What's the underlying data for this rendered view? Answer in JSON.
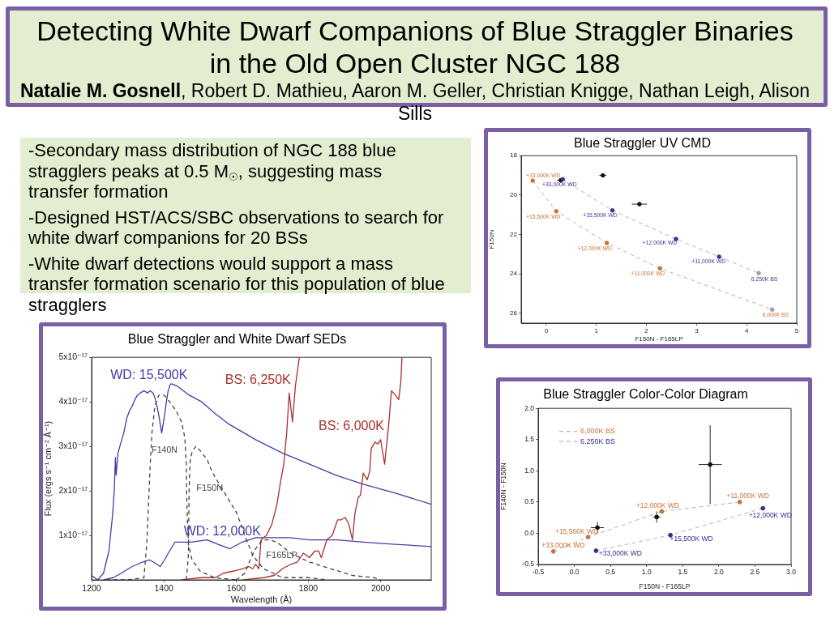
{
  "chart_data": [
    {
      "type": "other",
      "title": "Detecting White Dwarf Companions of Blue Straggler Binaries in the Old Open Cluster NGC 188",
      "subtitle": "Natalie M. Gosnell, Robert D. Mathieu, Aaron M. Geller, Christian Knigge, Nathan Leigh, Alison Sills",
      "annotations": [
        "-Secondary mass distribution of NGC 188 blue stragglers peaks at 0.5 M$_{☉}$, suggesting mass transfer formation",
        "-Designed HST/ACS/SBC observations to search for white dwarf companions for 20 BSs",
        "-White dwarf detections would support a mass transfer formation scenario for this population of blue stragglers"
      ]
    },
    {
      "type": "scatter",
      "title": "Blue Straggler UV CMD",
      "xlabel": "F150N - F165LP",
      "ylabel": "F150N",
      "xlim": [
        -0.5,
        5
      ],
      "ylim": [
        26.5,
        18
      ],
      "xticks": [
        0,
        1,
        2,
        3,
        4,
        5
      ],
      "yticks": [
        18,
        20,
        22,
        24,
        26
      ],
      "series": [
        {
          "type": "line",
          "color": "#b5b5b5",
          "line_style": "dashed",
          "x": [
            -0.27,
            0.2,
            1.21,
            2.27,
            4.51
          ],
          "values": [
            19.27,
            20.82,
            22.43,
            23.72,
            25.81
          ]
        },
        {
          "type": "line",
          "color": "#b5b5b5",
          "line_style": "dashed",
          "x": [
            0.33,
            1.32,
            2.59,
            3.45,
            4.24
          ],
          "values": [
            19.2,
            20.78,
            22.23,
            23.13,
            23.96
          ]
        },
        {
          "type": "scatter",
          "color": "#111111",
          "marker": "circle",
          "x": [
            0.29,
            1.13,
            1.86
          ],
          "values": [
            19.25,
            19.0,
            20.46
          ],
          "xerrors": [
            0.08,
            0.07,
            0.15
          ]
        },
        {
          "type": "scatter",
          "color": "#c8733a",
          "colors": [
            "#c8733a",
            "#c8733a",
            "#c8733a",
            "#c8733a",
            "#a39cab"
          ],
          "marker": "circle",
          "x": [
            -0.27,
            0.2,
            1.21,
            2.27,
            4.51
          ],
          "values": [
            19.27,
            20.82,
            22.43,
            23.72,
            25.81
          ]
        },
        {
          "type": "scatter",
          "color": "#4b2d8c",
          "colors": [
            "#4b2d8c",
            "#4b2d8c",
            "#4b2d8c",
            "#4b2d8c",
            "#a39cab"
          ],
          "marker": "circle",
          "x": [
            0.33,
            1.32,
            2.59,
            3.45,
            4.24
          ],
          "values": [
            19.2,
            20.78,
            22.23,
            23.13,
            23.96
          ]
        }
      ],
      "annotations": [
        {
          "text": "+33,000K WD",
          "x": -0.27,
          "y": 19.27
        },
        {
          "text": "+15,500K WD",
          "x": 0.2,
          "y": 20.82
        },
        {
          "text": "+12,000K WD",
          "x": 1.21,
          "y": 22.43
        },
        {
          "text": "+11,000K WD",
          "x": 2.27,
          "y": 23.72
        },
        {
          "text": "6,000K BS",
          "x": 4.51,
          "y": 25.81
        },
        {
          "text": "+33,000K WD",
          "x": 0.33,
          "y": 19.2
        },
        {
          "text": "+15,500K WD",
          "x": 1.32,
          "y": 20.78
        },
        {
          "text": "+12,000K WD",
          "x": 2.59,
          "y": 22.23
        },
        {
          "text": "+11,000K WD",
          "x": 3.45,
          "y": 23.13
        },
        {
          "text": "6,250K BS",
          "x": 4.24,
          "y": 23.96
        }
      ]
    },
    {
      "type": "line",
      "title": "Blue Straggler and White Dwarf SEDs",
      "xlabel": "Wavelength (Å)",
      "ylabel": "Flux (ergs s⁻¹ cm⁻² Å⁻¹)",
      "xlim": [
        1200,
        2140
      ],
      "ylim": [
        0,
        5e-17
      ],
      "xticks": [
        1200,
        1400,
        1600,
        1800,
        2000
      ],
      "yticks": [
        {
          "value": 1e-17,
          "label": "1x10⁻¹⁷"
        },
        {
          "value": 2e-17,
          "label": "2x10⁻¹⁷"
        },
        {
          "value": 3e-17,
          "label": "3x10⁻¹⁷"
        },
        {
          "value": 4e-17,
          "label": "4x10⁻¹⁷"
        },
        {
          "value": 5e-17,
          "label": "5x10⁻¹⁷"
        }
      ],
      "series": [
        {
          "name": "WD: 15,500K",
          "color": "#4a3aa8",
          "x": [
            1200,
            1217,
            1233,
            1248,
            1258,
            1263,
            1266,
            1268,
            1273,
            1280,
            1289,
            1298,
            1305,
            1312,
            1320,
            1327,
            1335,
            1345,
            1355,
            1362,
            1370,
            1375,
            1381,
            1386,
            1394,
            1402,
            1407,
            1412,
            1418,
            1423,
            1438,
            1470,
            1505,
            1540,
            1580,
            1654,
            1728,
            1803,
            1877,
            1952,
            2041,
            2140
          ],
          "values": [
            1e-18,
            0,
            1.5e-18,
            6.5e-18,
            1.45e-17,
            2.05e-17,
            2.75e-17,
            2.35e-17,
            2.85e-17,
            3.05e-17,
            3.3e-17,
            3.65e-17,
            3.8e-17,
            3.9e-17,
            4.05e-17,
            4.15e-17,
            4.2e-17,
            4.25e-17,
            4.2e-17,
            4.25e-17,
            4.2e-17,
            4.1e-17,
            3.9e-17,
            3.7e-17,
            3.3e-17,
            3.7e-17,
            4e-17,
            4.25e-17,
            4.4e-17,
            4.4e-17,
            4.35e-17,
            4.15e-17,
            4e-17,
            3.75e-17,
            3.5e-17,
            3.15e-17,
            2.85e-17,
            2.6e-17,
            2.35e-17,
            2.15e-17,
            1.95e-17,
            1.7e-17
          ]
        },
        {
          "name": "WD: 12,000K",
          "color": "#4a3aa8",
          "x": [
            1233,
            1260,
            1282,
            1312,
            1341,
            1360,
            1371,
            1390,
            1402,
            1416,
            1431,
            1450,
            1475,
            1520,
            1550,
            1583,
            1617,
            1654,
            1691,
            1750,
            1803,
            1880,
            1952,
            2040,
            2140
          ],
          "values": [
            0,
            5e-19,
            1.5e-18,
            3e-18,
            4e-18,
            4.5e-18,
            4e-18,
            3e-18,
            4.5e-18,
            6.5e-18,
            8.5e-18,
            8.5e-18,
            8.5e-18,
            9e-18,
            8e-18,
            7e-18,
            8.5e-18,
            9.5e-18,
            9.5e-18,
            9.5e-18,
            9e-18,
            9e-18,
            8.5e-18,
            8e-18,
            7.5e-18
          ]
        },
        {
          "name": "BS: 6,250K",
          "color": "#a8302e",
          "x": [
            1449,
            1505,
            1542,
            1565,
            1594,
            1617,
            1635,
            1646,
            1654,
            1663,
            1669,
            1684,
            1699,
            1713,
            1725,
            1732,
            1740,
            1747,
            1756,
            1764,
            1775
          ],
          "values": [
            0,
            5e-19,
            5e-19,
            1.5e-18,
            2e-18,
            2.5e-18,
            3e-18,
            2.5e-18,
            3.5e-18,
            2.5e-18,
            9e-18,
            1e-17,
            1.25e-17,
            1.7e-17,
            2.3e-17,
            2.6e-17,
            3.3e-17,
            4.2e-17,
            3.55e-17,
            4.35e-17,
            5e-17
          ]
        },
        {
          "name": "BS: 6,000K",
          "color": "#a8302e",
          "x": [
            1620,
            1676,
            1706,
            1728,
            1751,
            1769,
            1786,
            1803,
            1818,
            1828,
            1836,
            1851,
            1866,
            1881,
            1891,
            1902,
            1912,
            1922,
            1929,
            1938,
            1944,
            1952,
            1963,
            1970,
            1974,
            1985,
            1992,
            2000,
            2011,
            2022,
            2030,
            2041,
            2050,
            2056,
            2059
          ],
          "values": [
            0,
            5e-19,
            1e-18,
            2.5e-18,
            3.5e-18,
            4e-18,
            6e-18,
            5e-18,
            6.5e-18,
            6.5e-18,
            5e-18,
            9e-18,
            1e-17,
            1.35e-17,
            1.35e-17,
            1.4e-17,
            1.25e-17,
            9e-18,
            1.5e-17,
            1.85e-17,
            1.9e-17,
            2.4e-17,
            2.25e-17,
            2.45e-17,
            2.95e-17,
            3.1e-17,
            3.05e-17,
            3.15e-17,
            2.6e-17,
            3.45e-17,
            4.25e-17,
            4.15e-17,
            4.05e-17,
            4.45e-17,
            5e-17
          ]
        },
        {
          "name": "F140N",
          "color": "#444444",
          "line_style": "dashed",
          "x": [
            1240,
            1300,
            1345,
            1353,
            1362,
            1367,
            1375,
            1386,
            1401,
            1416,
            1434,
            1449,
            1458,
            1462,
            1464,
            1468,
            1478,
            1500,
            1540,
            1600
          ],
          "values": [
            0,
            0,
            5e-19,
            8.5e-18,
            2.55e-17,
            3.3e-17,
            3.9e-17,
            4.15e-17,
            4.15e-17,
            4e-17,
            3.8e-17,
            3.55e-17,
            3.2e-17,
            2.6e-17,
            1.6e-17,
            8e-18,
            4.5e-18,
            2e-18,
            5e-19,
            0
          ]
        },
        {
          "name": "F150N",
          "color": "#444444",
          "line_style": "dashed",
          "x": [
            1462,
            1468,
            1470,
            1473,
            1479,
            1489,
            1501,
            1520,
            1535,
            1572,
            1602,
            1624,
            1646,
            1676,
            1728,
            1803,
            1850
          ],
          "values": [
            0,
            5.5e-18,
            2.05e-17,
            2.7e-17,
            2.9e-17,
            3e-17,
            2.9e-17,
            2.7e-17,
            2.4e-17,
            1.9e-17,
            1.5e-17,
            1e-17,
            5.5e-18,
            2.5e-18,
            5e-19,
            5e-19,
            0
          ]
        },
        {
          "name": "F165LP",
          "color": "#444444",
          "line_style": "dashed",
          "x": [
            1600,
            1609,
            1624,
            1639,
            1654,
            1673,
            1691,
            1713,
            1751,
            1803,
            1862,
            1922,
            1981,
            2000
          ],
          "values": [
            0,
            5e-19,
            1.5e-18,
            4.5e-18,
            7e-18,
            9e-18,
            9e-18,
            8.5e-18,
            6e-18,
            4e-18,
            2.5e-18,
            1e-18,
            5e-19,
            0
          ]
        }
      ]
    },
    {
      "type": "scatter",
      "title": "Blue Straggler Color-Color Diagram",
      "xlabel": "F150N - F165LP",
      "ylabel": "F140N - F150N",
      "xlim": [
        -0.5,
        3
      ],
      "ylim": [
        -0.5,
        2
      ],
      "xticks": [
        -0.5,
        {
          "value": 0,
          "label": "0.0"
        },
        0.5,
        {
          "value": 1,
          "label": "1.0"
        },
        1.5,
        {
          "value": 2,
          "label": "2.0"
        },
        2.5,
        {
          "value": 3,
          "label": "3.0"
        }
      ],
      "yticks": [
        -0.5,
        {
          "value": 0,
          "label": "0.0"
        },
        0.5,
        {
          "value": 1,
          "label": "1.0"
        },
        1.5,
        {
          "value": 2,
          "label": "2.0"
        }
      ],
      "legend": "top left",
      "series": [
        {
          "type": "line",
          "name": "6,000K BS",
          "color": "#b5b5b5",
          "line_style": "dashed",
          "x": [
            -0.29,
            0.19,
            1.21,
            2.29
          ],
          "values": [
            -0.29,
            -0.06,
            0.35,
            0.5
          ]
        },
        {
          "type": "line",
          "name": "6,250K BS",
          "color": "#b5b5b5",
          "line_style": "dashed",
          "x": [
            0.3,
            1.33,
            2.61
          ],
          "values": [
            -0.28,
            -0.03,
            0.4
          ]
        },
        {
          "type": "scatter",
          "color": "#111111",
          "marker": "circle",
          "x": [
            0.32,
            1.14,
            1.88
          ],
          "values": [
            0.09,
            0.26,
            1.1
          ],
          "xerrors": [
            0.09,
            0.05,
            0.16
          ],
          "errors": [
            0.09,
            0.09,
            0.63
          ]
        },
        {
          "type": "scatter",
          "color": "#c8733a",
          "marker": "circle",
          "x": [
            -0.29,
            0.19,
            1.21,
            2.29
          ],
          "values": [
            -0.29,
            -0.06,
            0.35,
            0.5
          ]
        },
        {
          "type": "scatter",
          "color": "#3a2d8c",
          "marker": "circle",
          "x": [
            0.3,
            1.33,
            2.61
          ],
          "values": [
            -0.28,
            -0.03,
            0.4
          ]
        }
      ],
      "annotations": [
        {
          "text": "+33,000K WD",
          "x": -0.29,
          "y": -0.29
        },
        {
          "text": "+15,500K WD",
          "x": 0.19,
          "y": -0.06
        },
        {
          "text": "+12,000K WD",
          "x": 1.21,
          "y": 0.35
        },
        {
          "text": "+11,000K WD",
          "x": 2.29,
          "y": 0.5
        },
        {
          "text": "+33,000K WD",
          "x": 0.3,
          "y": -0.28
        },
        {
          "text": "+15,500K WD",
          "x": 1.33,
          "y": -0.03
        },
        {
          "text": "+12,000K WD",
          "x": 2.61,
          "y": 0.4
        }
      ]
    }
  ]
}
